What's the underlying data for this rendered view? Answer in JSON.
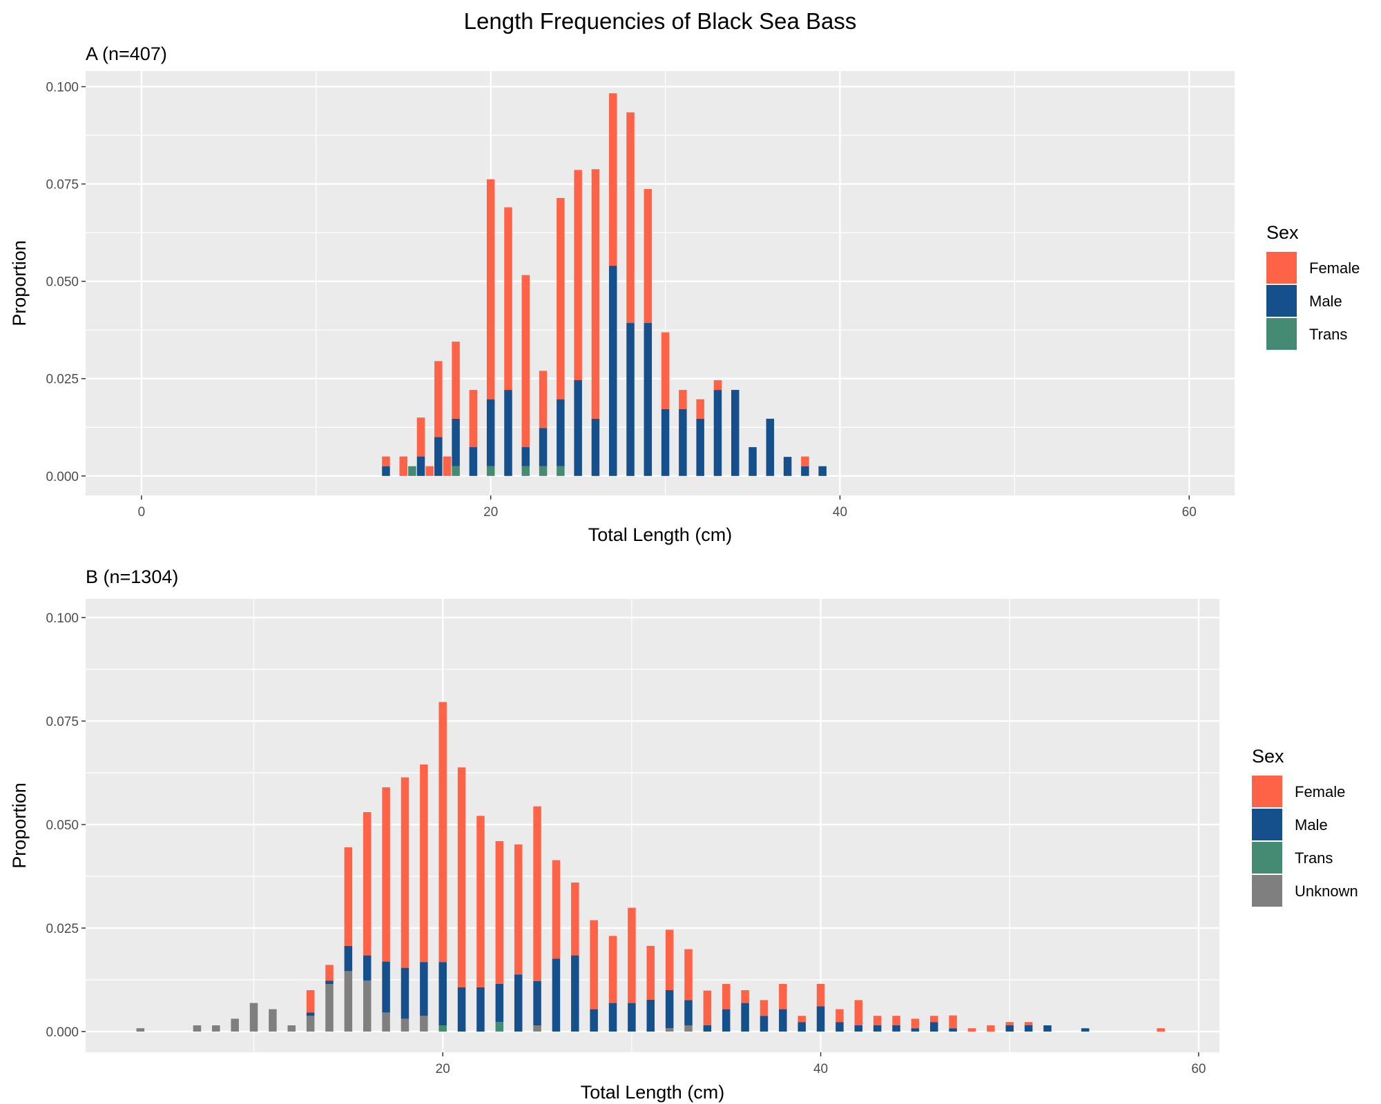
{
  "title": "Length Frequencies of Black Sea Bass",
  "colors": {
    "Female": "#FF6347",
    "Male": "#154F8C",
    "Trans": "#458B74",
    "Unknown": "#7F7F7F",
    "panel_bg": "#EBEBEB",
    "grid": "#FFFFFF"
  },
  "chart_data": [
    {
      "type": "bar",
      "stacked": true,
      "title": "A (n=407)",
      "xlabel": "Total Length (cm)",
      "ylabel": "Proportion",
      "xlim": [
        -3.2,
        62.6
      ],
      "ylim": [
        -0.005,
        0.104
      ],
      "x_ticks": [
        "0",
        "20",
        "40",
        "60"
      ],
      "y_ticks": [
        "0.000",
        "0.025",
        "0.050",
        "0.075",
        "0.100"
      ],
      "legend_title": "Sex",
      "legend_position": "right",
      "legend": [
        "Female",
        "Male",
        "Trans"
      ],
      "stack_order": [
        "Unknown",
        "Trans",
        "Male",
        "Female"
      ],
      "bars": [
        {
          "x": 14,
          "Male": 0.0025,
          "Female": 0.0025
        },
        {
          "x": 15,
          "Female": 0.005
        },
        {
          "x": 15.5,
          "Trans": 0.0025
        },
        {
          "x": 16,
          "Male": 0.005,
          "Female": 0.01
        },
        {
          "x": 16.5,
          "Female": 0.0025
        },
        {
          "x": 17,
          "Male": 0.01,
          "Female": 0.0195
        },
        {
          "x": 17.5,
          "Female": 0.005
        },
        {
          "x": 18,
          "Trans": 0.0025,
          "Male": 0.0122,
          "Female": 0.0198
        },
        {
          "x": 19,
          "Male": 0.0074,
          "Female": 0.0147
        },
        {
          "x": 20,
          "Trans": 0.0025,
          "Male": 0.0172,
          "Female": 0.0565
        },
        {
          "x": 21,
          "Male": 0.0221,
          "Female": 0.0469
        },
        {
          "x": 22,
          "Trans": 0.0025,
          "Male": 0.0049,
          "Female": 0.0442
        },
        {
          "x": 23,
          "Trans": 0.0025,
          "Male": 0.0098,
          "Female": 0.0147
        },
        {
          "x": 24,
          "Trans": 0.0025,
          "Male": 0.0172,
          "Female": 0.0517
        },
        {
          "x": 25,
          "Male": 0.0246,
          "Female": 0.054
        },
        {
          "x": 26,
          "Male": 0.0147,
          "Female": 0.0641
        },
        {
          "x": 27,
          "Male": 0.054,
          "Female": 0.0443
        },
        {
          "x": 28,
          "Male": 0.0393,
          "Female": 0.0541
        },
        {
          "x": 29,
          "Male": 0.0393,
          "Female": 0.0344
        },
        {
          "x": 30,
          "Male": 0.0172,
          "Female": 0.0197
        },
        {
          "x": 31,
          "Male": 0.0172,
          "Female": 0.0049
        },
        {
          "x": 32,
          "Male": 0.0147,
          "Female": 0.005
        },
        {
          "x": 33,
          "Male": 0.0221,
          "Female": 0.0025
        },
        {
          "x": 34,
          "Male": 0.0221
        },
        {
          "x": 35,
          "Male": 0.0074
        },
        {
          "x": 36,
          "Male": 0.0147
        },
        {
          "x": 37,
          "Male": 0.0049
        },
        {
          "x": 38,
          "Male": 0.0025,
          "Female": 0.0025
        },
        {
          "x": 39,
          "Male": 0.0025
        }
      ]
    },
    {
      "type": "bar",
      "stacked": true,
      "title": "B (n=1304)",
      "xlabel": "Total Length (cm)",
      "ylabel": "Proportion",
      "xlim": [
        1.1,
        61.1
      ],
      "ylim": [
        -0.005,
        0.1045
      ],
      "x_ticks": [
        "20",
        "40",
        "60"
      ],
      "y_ticks": [
        "0.000",
        "0.025",
        "0.050",
        "0.075",
        "0.100"
      ],
      "legend_title": "Sex",
      "legend_position": "right",
      "legend": [
        "Female",
        "Male",
        "Trans",
        "Unknown"
      ],
      "stack_order": [
        "Unknown",
        "Trans",
        "Male",
        "Female"
      ],
      "bars": [
        {
          "x": 4,
          "Unknown": 0.0008
        },
        {
          "x": 7,
          "Unknown": 0.0015
        },
        {
          "x": 8,
          "Unknown": 0.0015
        },
        {
          "x": 9,
          "Unknown": 0.0031
        },
        {
          "x": 10,
          "Unknown": 0.0069
        },
        {
          "x": 11,
          "Unknown": 0.0054
        },
        {
          "x": 12,
          "Unknown": 0.0015
        },
        {
          "x": 13,
          "Unknown": 0.0038,
          "Male": 0.0008,
          "Female": 0.0054
        },
        {
          "x": 14,
          "Unknown": 0.0115,
          "Male": 0.0008,
          "Female": 0.0038
        },
        {
          "x": 15,
          "Unknown": 0.0146,
          "Male": 0.0061,
          "Female": 0.0238
        },
        {
          "x": 16,
          "Unknown": 0.0123,
          "Male": 0.0061,
          "Female": 0.0346
        },
        {
          "x": 17,
          "Unknown": 0.0046,
          "Male": 0.0123,
          "Female": 0.0421
        },
        {
          "x": 18,
          "Unknown": 0.0031,
          "Male": 0.0123,
          "Female": 0.046
        },
        {
          "x": 19,
          "Unknown": 0.0038,
          "Male": 0.013,
          "Female": 0.0477
        },
        {
          "x": 20,
          "Trans": 0.0015,
          "Male": 0.0153,
          "Female": 0.0628
        },
        {
          "x": 21,
          "Male": 0.0107,
          "Female": 0.0531
        },
        {
          "x": 22,
          "Male": 0.0107,
          "Female": 0.0414
        },
        {
          "x": 23,
          "Trans": 0.0023,
          "Male": 0.0092,
          "Female": 0.0345
        },
        {
          "x": 24,
          "Male": 0.0138,
          "Female": 0.0314
        },
        {
          "x": 25,
          "Unknown": 0.0015,
          "Male": 0.0107,
          "Female": 0.0422
        },
        {
          "x": 26,
          "Male": 0.0176,
          "Female": 0.0238
        },
        {
          "x": 27,
          "Male": 0.0184,
          "Female": 0.0176
        },
        {
          "x": 28,
          "Male": 0.0054,
          "Female": 0.0215
        },
        {
          "x": 29,
          "Male": 0.0069,
          "Female": 0.0162
        },
        {
          "x": 30,
          "Male": 0.0069,
          "Female": 0.023
        },
        {
          "x": 31,
          "Male": 0.0077,
          "Female": 0.013
        },
        {
          "x": 32,
          "Unknown": 0.0008,
          "Male": 0.0092,
          "Female": 0.0146
        },
        {
          "x": 33,
          "Unknown": 0.0015,
          "Male": 0.0061,
          "Female": 0.0123
        },
        {
          "x": 34,
          "Male": 0.0015,
          "Female": 0.0084
        },
        {
          "x": 35,
          "Male": 0.0054,
          "Female": 0.0061
        },
        {
          "x": 36,
          "Male": 0.0069,
          "Female": 0.0031
        },
        {
          "x": 37,
          "Male": 0.0038,
          "Female": 0.0038
        },
        {
          "x": 38,
          "Male": 0.0054,
          "Female": 0.0061
        },
        {
          "x": 39,
          "Male": 0.0023,
          "Female": 0.0015
        },
        {
          "x": 40,
          "Male": 0.0061,
          "Female": 0.0054
        },
        {
          "x": 41,
          "Male": 0.0023,
          "Female": 0.0031
        },
        {
          "x": 42,
          "Male": 0.0015,
          "Female": 0.0061
        },
        {
          "x": 43,
          "Male": 0.0015,
          "Female": 0.0023
        },
        {
          "x": 44,
          "Male": 0.0015,
          "Female": 0.0023
        },
        {
          "x": 45,
          "Male": 0.0008,
          "Female": 0.0023
        },
        {
          "x": 46,
          "Male": 0.0023,
          "Female": 0.0015
        },
        {
          "x": 47,
          "Male": 0.0008,
          "Female": 0.0031
        },
        {
          "x": 48,
          "Female": 0.0008
        },
        {
          "x": 49,
          "Female": 0.0015
        },
        {
          "x": 50,
          "Male": 0.0015,
          "Female": 0.0008
        },
        {
          "x": 51,
          "Male": 0.0015,
          "Female": 0.0008
        },
        {
          "x": 52,
          "Male": 0.0015
        },
        {
          "x": 54,
          "Male": 0.0008
        },
        {
          "x": 58,
          "Female": 0.0008
        }
      ]
    }
  ]
}
